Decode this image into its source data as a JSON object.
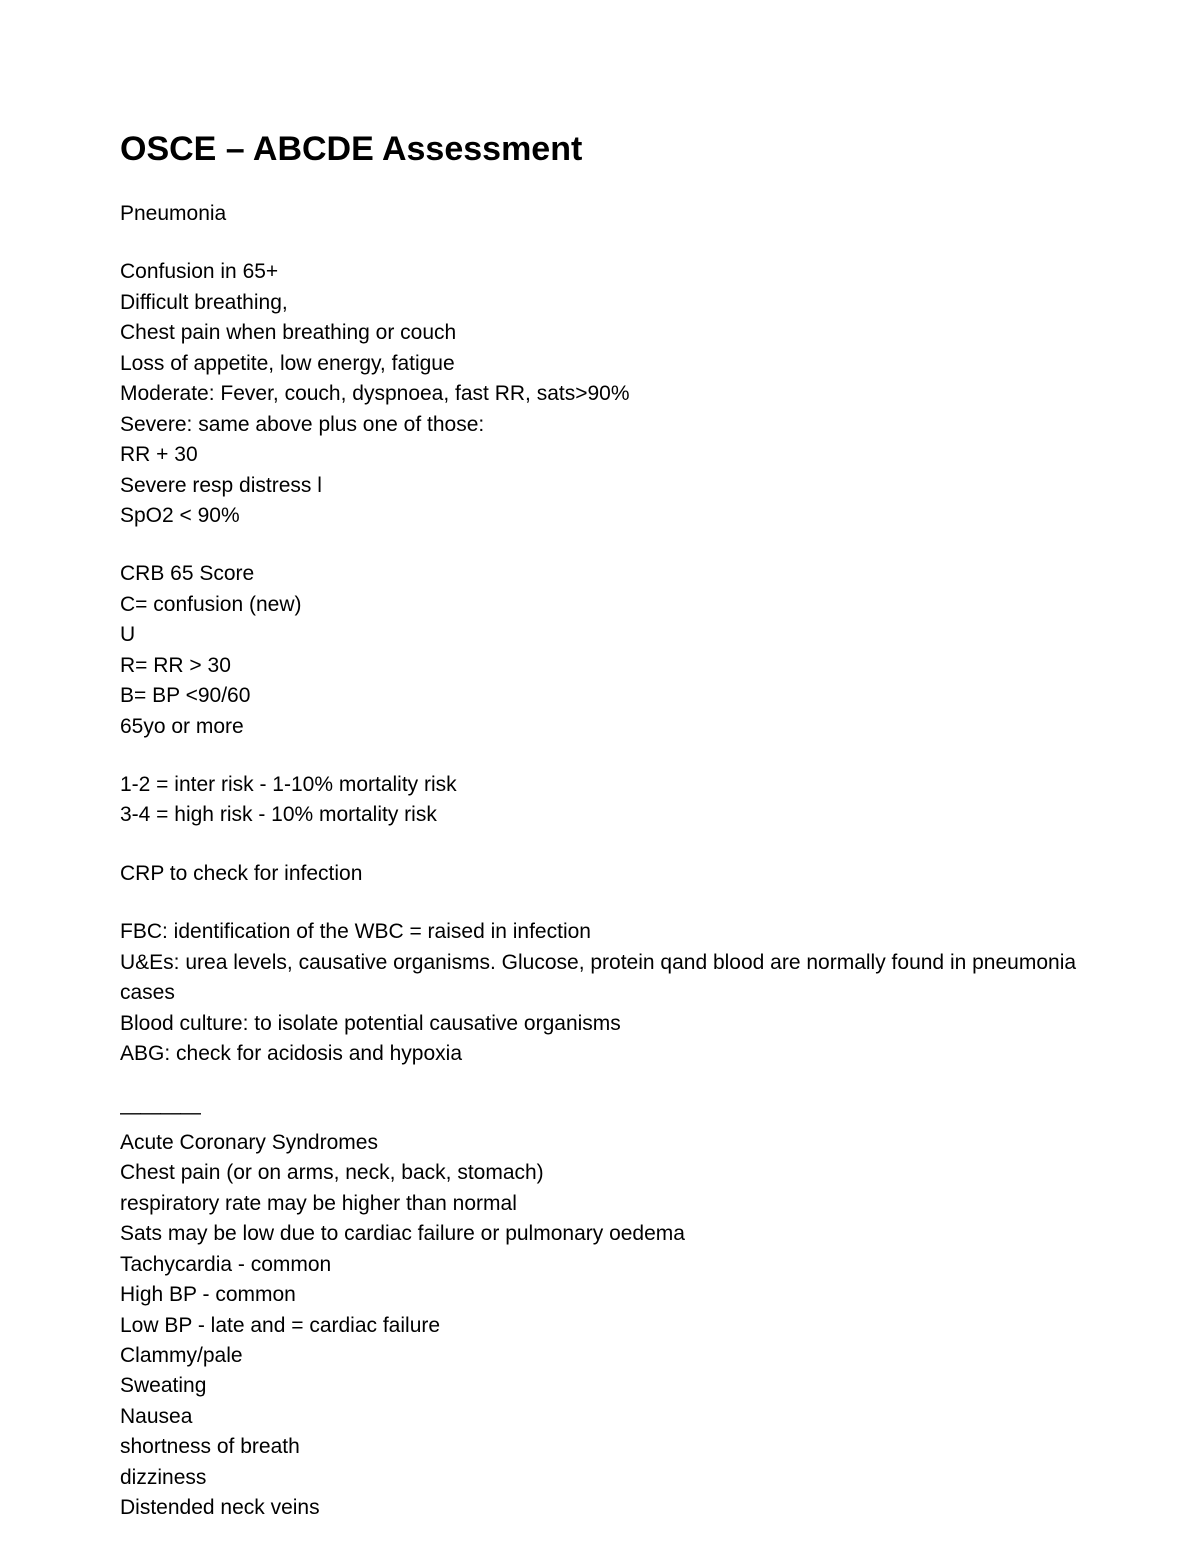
{
  "title": "OSCE – ABCDE Assessment",
  "sections": [
    {
      "lines": [
        "Pneumonia"
      ]
    },
    {
      "lines": [
        "Confusion in 65+",
        "Difficult breathing,",
        "Chest pain when breathing or couch",
        "Loss of appetite, low energy, fatigue",
        "Moderate: Fever, couch, dyspnoea, fast RR, sats>90%",
        "Severe: same above plus one of those:",
        "RR + 30",
        "Severe resp distress l",
        "SpO2 < 90%"
      ]
    },
    {
      "lines": [
        "CRB 65 Score",
        "C= confusion (new)",
        "U",
        "R= RR > 30",
        "B= BP <90/60",
        "65yo or more"
      ]
    },
    {
      "lines": [
        "1-2 = inter risk - 1-10% mortality risk",
        "3-4 = high risk - 10% mortality risk"
      ]
    },
    {
      "lines": [
        "CRP to check for infection"
      ]
    },
    {
      "lines": [
        "FBC: identification of the WBC = raised in infection",
        "U&Es: urea levels, causative organisms. Glucose, protein qand blood are normally found in pneumonia cases",
        "Blood culture: to isolate potential causative organisms",
        "ABG: check for acidosis and hypoxia"
      ]
    },
    {
      "divider": "————",
      "lines": [
        "Acute Coronary Syndromes",
        "Chest pain (or on arms, neck, back, stomach)",
        "respiratory rate may be higher than normal",
        "Sats may be low due to cardiac failure or pulmonary oedema",
        "Tachycardia - common",
        "High BP - common",
        "Low BP - late and = cardiac failure",
        "Clammy/pale",
        "Sweating",
        "Nausea",
        "shortness of breath",
        "dizziness",
        "Distended neck veins"
      ]
    }
  ],
  "colors": {
    "background": "#ffffff",
    "text": "#000000"
  },
  "typography": {
    "title_fontsize": 34,
    "body_fontsize": 21,
    "font_family": "Verdana"
  }
}
